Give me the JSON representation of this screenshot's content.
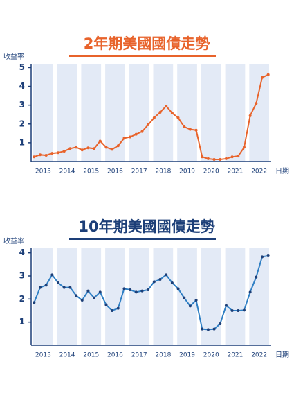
{
  "chart_data": [
    {
      "type": "line",
      "title": "2年期美國國債走勢",
      "ylabel": "收益率",
      "xlabel": "日期",
      "color": "#e8632b",
      "marker_color": "#e8632b",
      "title_color": "#e8632b",
      "x": [
        2013.125,
        2013.375,
        2013.625,
        2013.875,
        2014.125,
        2014.375,
        2014.625,
        2014.875,
        2015.125,
        2015.375,
        2015.625,
        2015.875,
        2016.125,
        2016.375,
        2016.625,
        2016.875,
        2017.125,
        2017.375,
        2017.625,
        2017.875,
        2018.125,
        2018.375,
        2018.625,
        2018.875,
        2019.125,
        2019.375,
        2019.625,
        2019.875,
        2020.125,
        2020.375,
        2020.625,
        2020.875,
        2021.125,
        2021.375,
        2021.625,
        2021.875,
        2022.125,
        2022.375,
        2022.625,
        2022.875
      ],
      "values": [
        0.25,
        0.36,
        0.33,
        0.44,
        0.47,
        0.55,
        0.69,
        0.76,
        0.62,
        0.73,
        0.69,
        1.09,
        0.76,
        0.65,
        0.84,
        1.24,
        1.31,
        1.45,
        1.6,
        1.96,
        2.33,
        2.62,
        2.95,
        2.58,
        2.33,
        1.85,
        1.71,
        1.67,
        0.25,
        0.15,
        0.11,
        0.11,
        0.15,
        0.25,
        0.29,
        0.76,
        2.44,
        3.09,
        4.47,
        4.62
      ],
      "xlim": [
        2013,
        2023
      ],
      "xticks": [
        {
          "value": 2013.5,
          "label": "2013"
        },
        {
          "value": 2014.5,
          "label": "2014"
        },
        {
          "value": 2015.5,
          "label": "2015"
        },
        {
          "value": 2016.5,
          "label": "2016"
        },
        {
          "value": 2017.5,
          "label": "2017"
        },
        {
          "value": 2018.5,
          "label": "2018"
        },
        {
          "value": 2019.5,
          "label": "2019"
        },
        {
          "value": 2020.5,
          "label": "2020"
        },
        {
          "value": 2021.5,
          "label": "2021"
        },
        {
          "value": 2022.5,
          "label": "2022"
        }
      ],
      "ylim": [
        0,
        5.2
      ],
      "yticks": [
        1,
        2,
        3,
        4,
        5
      ]
    },
    {
      "type": "line",
      "title": "10年期美國國債走勢",
      "ylabel": "收益率",
      "xlabel": "日期",
      "color": "#2f7fc4",
      "marker_color": "#1d3f78",
      "title_color": "#1d3f78",
      "x": [
        2013.125,
        2013.375,
        2013.625,
        2013.875,
        2014.125,
        2014.375,
        2014.625,
        2014.875,
        2015.125,
        2015.375,
        2015.625,
        2015.875,
        2016.125,
        2016.375,
        2016.625,
        2016.875,
        2017.125,
        2017.375,
        2017.625,
        2017.875,
        2018.125,
        2018.375,
        2018.625,
        2018.875,
        2019.125,
        2019.375,
        2019.625,
        2019.875,
        2020.125,
        2020.375,
        2020.625,
        2020.875,
        2021.125,
        2021.375,
        2021.625,
        2021.875,
        2022.125,
        2022.375,
        2022.625,
        2022.875
      ],
      "values": [
        1.85,
        2.5,
        2.6,
        3.05,
        2.7,
        2.5,
        2.5,
        2.15,
        1.95,
        2.35,
        2.05,
        2.3,
        1.75,
        1.5,
        1.6,
        2.45,
        2.4,
        2.3,
        2.35,
        2.4,
        2.75,
        2.85,
        3.05,
        2.7,
        2.45,
        2.05,
        1.7,
        1.95,
        0.7,
        0.68,
        0.7,
        0.93,
        1.72,
        1.5,
        1.5,
        1.52,
        2.3,
        2.95,
        3.83,
        3.87
      ],
      "xlim": [
        2013,
        2023
      ],
      "xticks": [
        {
          "value": 2013.5,
          "label": "2013"
        },
        {
          "value": 2014.5,
          "label": "2014"
        },
        {
          "value": 2015.5,
          "label": "2015"
        },
        {
          "value": 2016.5,
          "label": "2016"
        },
        {
          "value": 2017.5,
          "label": "2017"
        },
        {
          "value": 2018.5,
          "label": "2018"
        },
        {
          "value": 2019.5,
          "label": "2019"
        },
        {
          "value": 2020.5,
          "label": "2020"
        },
        {
          "value": 2021.5,
          "label": "2021"
        },
        {
          "value": 2022.5,
          "label": "2022"
        }
      ],
      "ylim": [
        0,
        4.2
      ],
      "yticks": [
        1,
        2,
        3,
        4
      ]
    }
  ]
}
